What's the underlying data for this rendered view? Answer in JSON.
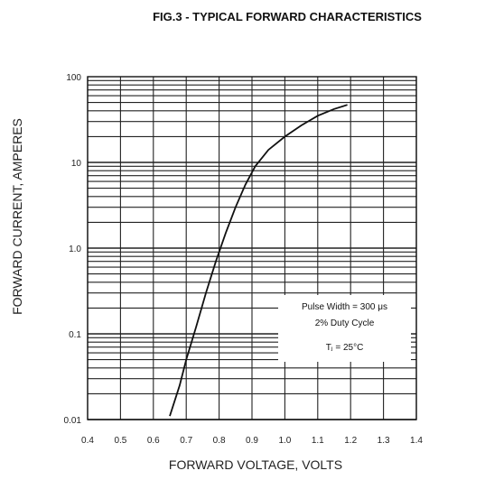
{
  "chart_data": {
    "type": "line",
    "title": "FIG.3 - TYPICAL FORWARD  CHARACTERISTICS",
    "xlabel": "FORWARD VOLTAGE, VOLTS",
    "ylabel": "FORWARD CURRENT, AMPERES",
    "x_scale": "linear",
    "y_scale": "log",
    "xlim": [
      0.4,
      1.4
    ],
    "ylim": [
      0.01,
      100
    ],
    "x_ticks": [
      "0.4",
      "0.5",
      "0.6",
      "0.7",
      "0.8",
      "0.9",
      "1.0",
      "1.1",
      "1.2",
      "1.3",
      "1.4"
    ],
    "y_ticks": [
      "0.01",
      "0.1",
      "1.0",
      "10",
      "100"
    ],
    "grid": true,
    "series": [
      {
        "points": [
          {
            "x": 0.65,
            "y": 0.011
          },
          {
            "x": 0.68,
            "y": 0.025
          },
          {
            "x": 0.7,
            "y": 0.05
          },
          {
            "x": 0.73,
            "y": 0.12
          },
          {
            "x": 0.76,
            "y": 0.3
          },
          {
            "x": 0.79,
            "y": 0.7
          },
          {
            "x": 0.82,
            "y": 1.5
          },
          {
            "x": 0.85,
            "y": 3.0
          },
          {
            "x": 0.88,
            "y": 5.5
          },
          {
            "x": 0.91,
            "y": 9.0
          },
          {
            "x": 0.95,
            "y": 14
          },
          {
            "x": 1.0,
            "y": 20
          },
          {
            "x": 1.05,
            "y": 27
          },
          {
            "x": 1.1,
            "y": 35
          },
          {
            "x": 1.15,
            "y": 42
          },
          {
            "x": 1.19,
            "y": 47
          }
        ]
      }
    ],
    "annotation": {
      "lines": [
        "Pulse Width = 300 μs",
        "2% Duty Cycle",
        "Tⱼ = 25°C"
      ]
    }
  }
}
